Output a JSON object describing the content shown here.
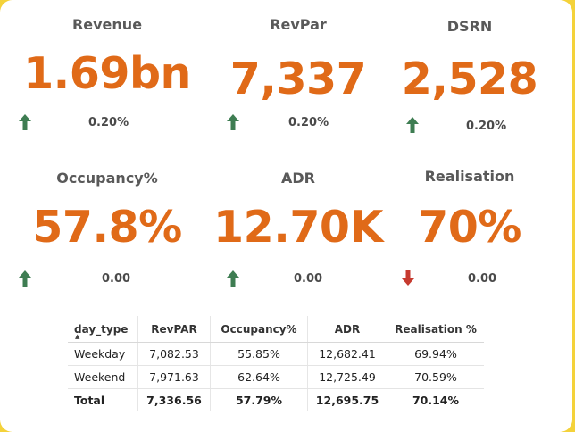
{
  "kpis": [
    {
      "title": "Revenue",
      "value": "1.69bn",
      "delta": "0.20%",
      "trend": "up"
    },
    {
      "title": "RevPar",
      "value": "7,337",
      "delta": "0.20%",
      "trend": "up"
    },
    {
      "title": "DSRN",
      "value": "2,528",
      "delta": "0.20%",
      "trend": "up"
    },
    {
      "title": "Occupancy%",
      "value": "57.8%",
      "delta": "0.00",
      "trend": "up"
    },
    {
      "title": "ADR",
      "value": "12.70K",
      "delta": "0.00",
      "trend": "up"
    },
    {
      "title": "Realisation",
      "value": "70%",
      "delta": "0.00",
      "trend": "down"
    }
  ],
  "colors": {
    "value": "#e06a18",
    "up_arrow": "#3e7d52",
    "down_arrow": "#c63a2f",
    "frame": "#f4d23a"
  },
  "table": {
    "headers": [
      "day_type",
      "RevPAR",
      "Occupancy%",
      "ADR",
      "Realisation %"
    ],
    "sort_indicator": "▲",
    "rows": [
      [
        "Weekday",
        "7,082.53",
        "55.85%",
        "12,682.41",
        "69.94%"
      ],
      [
        "Weekend",
        "7,971.63",
        "62.64%",
        "12,725.49",
        "70.59%"
      ]
    ],
    "total": [
      "Total",
      "7,336.56",
      "57.79%",
      "12,695.75",
      "70.14%"
    ]
  }
}
